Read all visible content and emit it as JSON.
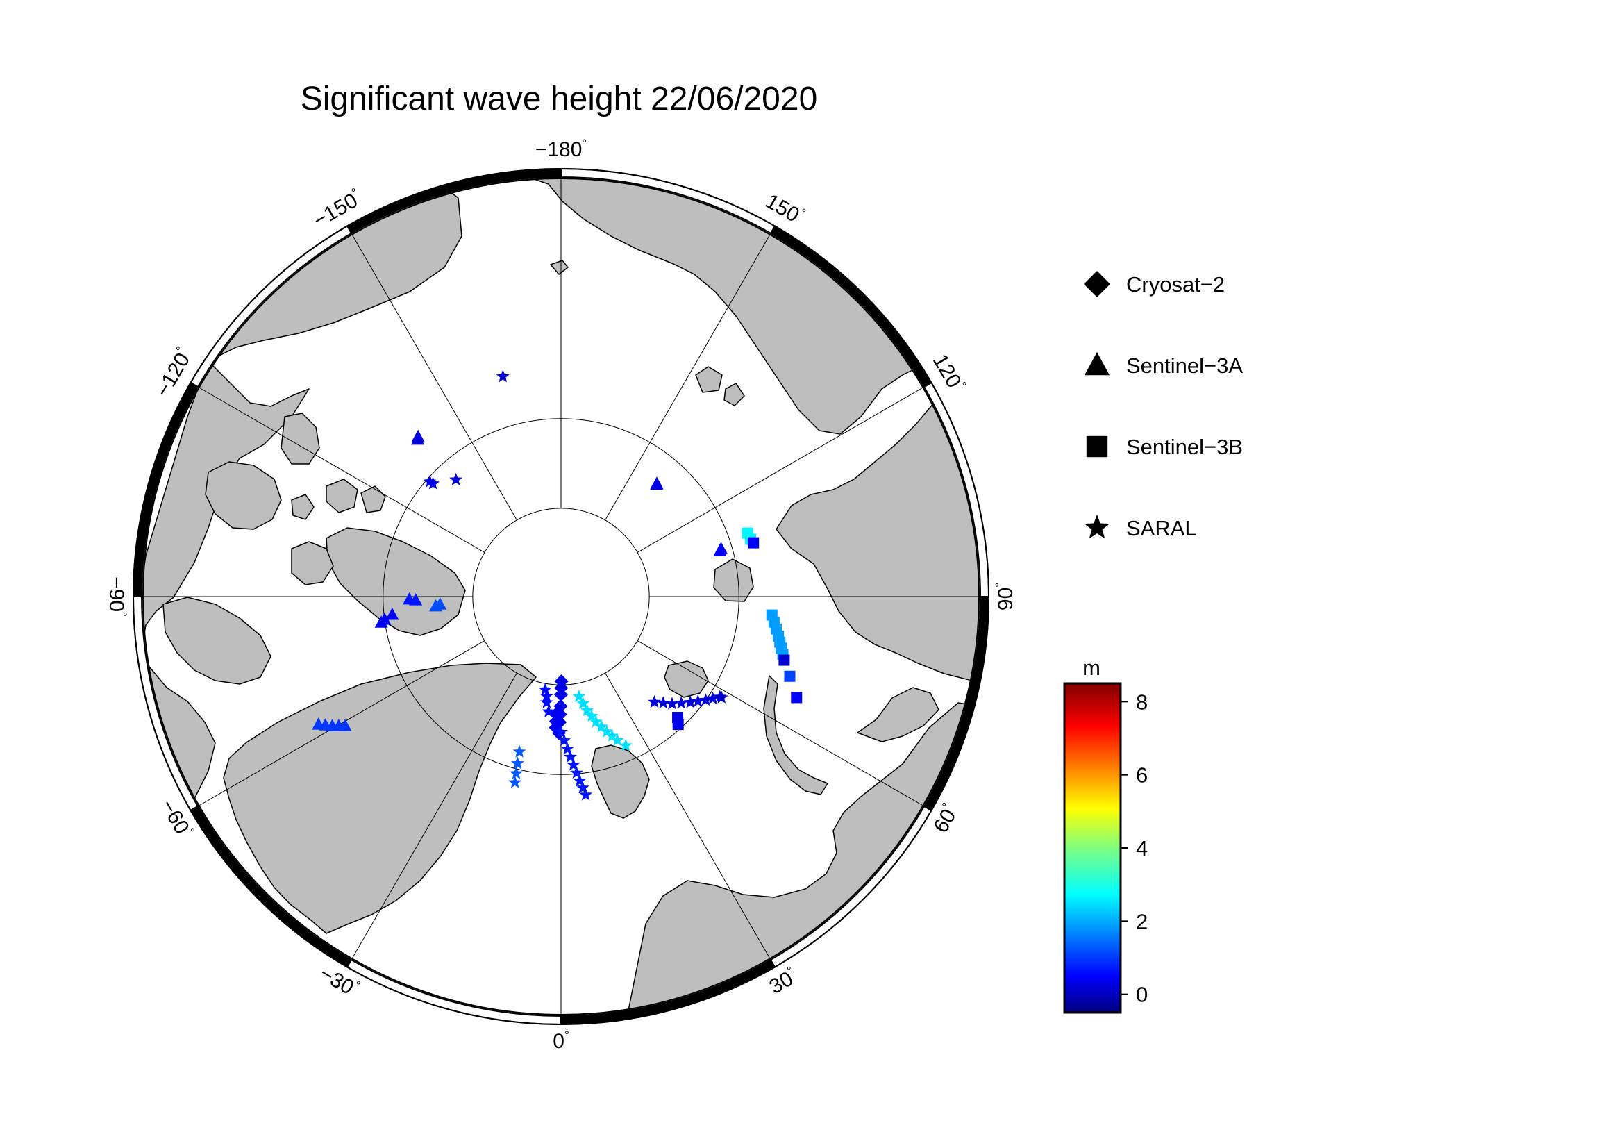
{
  "title": "Significant wave height 22/06/2020",
  "map": {
    "projection": "north polar stereographic",
    "center_latitude": 90,
    "bottom_longitude": 0,
    "land_color": "#bebebe",
    "ocean_color": "#ffffff",
    "longitude_labels": [
      {
        "lon": -180,
        "text": "−180",
        "deg": "°"
      },
      {
        "lon": 150,
        "text": "150",
        "deg": "°"
      },
      {
        "lon": 120,
        "text": "120",
        "deg": "°"
      },
      {
        "lon": 90,
        "text": "90",
        "deg": "°"
      },
      {
        "lon": 60,
        "text": "60",
        "deg": "°"
      },
      {
        "lon": 30,
        "text": "30",
        "deg": "°"
      },
      {
        "lon": 0,
        "text": "0",
        "deg": "°"
      },
      {
        "lon": -30,
        "text": "−30",
        "deg": "°"
      },
      {
        "lon": -60,
        "text": "−60",
        "deg": "°"
      },
      {
        "lon": -90,
        "text": "−90",
        "deg": "°"
      },
      {
        "lon": -120,
        "text": "−120",
        "deg": "°"
      },
      {
        "lon": -150,
        "text": "−150",
        "deg": "°"
      }
    ]
  },
  "legend": [
    {
      "label": "Cryosat−2",
      "marker": "diamond"
    },
    {
      "label": "Sentinel−3A",
      "marker": "triangle"
    },
    {
      "label": "Sentinel−3B",
      "marker": "square"
    },
    {
      "label": "SARAL",
      "marker": "star"
    }
  ],
  "colorbar": {
    "unit": "m",
    "min": -0.5,
    "max": 8.5,
    "ticks": [
      {
        "value": 8,
        "label": "8"
      },
      {
        "value": 6,
        "label": "6"
      },
      {
        "value": 4,
        "label": "4"
      },
      {
        "value": 2,
        "label": "2"
      },
      {
        "value": 0,
        "label": "0"
      }
    ],
    "colormap": "jet"
  },
  "chart_data": {
    "type": "scatter",
    "title": "Significant wave height 22/06/2020",
    "value_unit": "m",
    "color_range": [
      -0.5,
      8.5
    ],
    "series": [
      {
        "name": "Cryosat−2",
        "marker": "diamond",
        "tracks": [
          {
            "swh": 0.4,
            "points": [
              {
                "lon": 0.3,
                "lat": 80.4
              },
              {
                "lon": 0.0,
                "lat": 78.9
              },
              {
                "lon": -0.2,
                "lat": 77.6
              },
              {
                "lon": -0.4,
                "lat": 76.7
              },
              {
                "lon": -0.6,
                "lat": 75.8
              },
              {
                "lon": -0.9,
                "lat": 74.6
              }
            ]
          },
          {
            "swh": 0.5,
            "points": [
              {
                "lon": -2.4,
                "lat": 76.7
              },
              {
                "lon": -2.3,
                "lat": 75.9
              },
              {
                "lon": -2.3,
                "lat": 75.2
              }
            ]
          }
        ]
      },
      {
        "name": "Sentinel−3A",
        "marker": "triangle",
        "tracks": [
          {
            "swh": 1.1,
            "points": [
              {
                "lon": -62.2,
                "lat": 59.6
              },
              {
                "lon": -60.5,
                "lat": 60.8
              },
              {
                "lon": -59.1,
                "lat": 62.0
              }
            ]
          },
          {
            "swh": 0.5,
            "points": [
              {
                "lon": -81.8,
                "lat": 69.6
              },
              {
                "lon": -82.6,
                "lat": 70.0
              },
              {
                "lon": -83.9,
                "lat": 70.9
              }
            ]
          },
          {
            "swh": 0.8,
            "points": [
              {
                "lon": -89.0,
                "lat": 72.9
              },
              {
                "lon": -88.6,
                "lat": 73.6
              }
            ]
          },
          {
            "swh": 1.3,
            "points": [
              {
                "lon": -85.6,
                "lat": 75.8
              },
              {
                "lon": -86.3,
                "lat": 76.3
              }
            ]
          },
          {
            "swh": 0.3,
            "points": [
              {
                "lon": -138.2,
                "lat": 66.0
              },
              {
                "lon": -137.6,
                "lat": 66.2
              }
            ]
          },
          {
            "swh": 0.4,
            "points": [
              {
                "lon": 139.5,
                "lat": 73.4
              },
              {
                "lon": 139.7,
                "lat": 73.3
              }
            ]
          },
          {
            "swh": 0.6,
            "points": [
              {
                "lon": 106.0,
                "lat": 71.4
              },
              {
                "lon": 106.6,
                "lat": 71.2
              }
            ]
          }
        ]
      },
      {
        "name": "Sentinel−3B",
        "marker": "square",
        "tracks": [
          {
            "swh": 2.0,
            "points": [
              {
                "lon": 85.0,
                "lat": 66.3
              },
              {
                "lon": 79.7,
                "lat": 65.3
              },
              {
                "lon": 75.4,
                "lat": 64.4
              }
            ]
          },
          {
            "swh": 0.2,
            "points": [
              {
                "lon": 74.1,
                "lat": 64.1
              }
            ]
          },
          {
            "swh": 1.2,
            "points": [
              {
                "lon": 70.8,
                "lat": 63.0
              }
            ]
          },
          {
            "swh": 0.6,
            "points": [
              {
                "lon": 66.8,
                "lat": 61.5
              }
            ]
          },
          {
            "swh": 2.8,
            "points": [
              {
                "lon": 108.8,
                "lat": 67.9
              },
              {
                "lon": 106.8,
                "lat": 67.8
              }
            ]
          },
          {
            "swh": 0.6,
            "points": [
              {
                "lon": 105.6,
                "lat": 67.6
              }
            ]
          },
          {
            "swh": 0.4,
            "points": [
              {
                "lon": 44.0,
                "lat": 71.1
              },
              {
                "lon": 42.5,
                "lat": 70.5
              }
            ]
          }
        ]
      },
      {
        "name": "SARAL",
        "marker": "star",
        "tracks": [
          {
            "swh": 2.6,
            "points": [
              {
                "lon": 10.2,
                "lat": 78.5
              },
              {
                "lon": 12.9,
                "lat": 76.8
              },
              {
                "lon": 15.6,
                "lat": 75.3
              },
              {
                "lon": 18.7,
                "lat": 73.9
              },
              {
                "lon": 21.4,
                "lat": 72.6
              },
              {
                "lon": 23.5,
                "lat": 71.7
              }
            ]
          },
          {
            "swh": 0.3,
            "points": [
              {
                "lon": 41.5,
                "lat": 74.1
              },
              {
                "lon": 46.0,
                "lat": 72.6
              },
              {
                "lon": 50.7,
                "lat": 71.2
              },
              {
                "lon": 54.4,
                "lat": 70.0
              },
              {
                "lon": 57.7,
                "lat": 68.9
              }
            ]
          },
          {
            "swh": 0.8,
            "points": [
              {
                "lon": 0.0,
                "lat": 74.7
              },
              {
                "lon": 2.4,
                "lat": 72.8
              },
              {
                "lon": 4.2,
                "lat": 71.0
              },
              {
                "lon": 5.8,
                "lat": 69.2
              },
              {
                "lon": 7.1,
                "lat": 67.6
              }
            ]
          },
          {
            "swh": 0.7,
            "points": [
              {
                "lon": -9.6,
                "lat": 79.3
              },
              {
                "lon": -8.2,
                "lat": 78.6
              },
              {
                "lon": -7.7,
                "lat": 77.9
              },
              {
                "lon": -6.2,
                "lat": 76.9
              }
            ]
          },
          {
            "swh": 1.4,
            "points": [
              {
                "lon": -15.0,
                "lat": 71.9
              },
              {
                "lon": -14.6,
                "lat": 70.6
              },
              {
                "lon": -14.2,
                "lat": 69.5
              },
              {
                "lon": -13.9,
                "lat": 68.5
              }
            ]
          },
          {
            "swh": 0.3,
            "points": [
              {
                "lon": -165.2,
                "lat": 64.6
              }
            ]
          },
          {
            "swh": 0.5,
            "points": [
              {
                "lon": -131.4,
                "lat": 70.8
              },
              {
                "lon": -131.2,
                "lat": 70.4
              }
            ]
          },
          {
            "swh": 0.3,
            "points": [
              {
                "lon": -138.0,
                "lat": 72.3
              }
            ]
          },
          {
            "swh": 0.2,
            "points": [
              {
                "lon": 57.8,
                "lat": 68.7
              }
            ]
          }
        ]
      }
    ]
  }
}
